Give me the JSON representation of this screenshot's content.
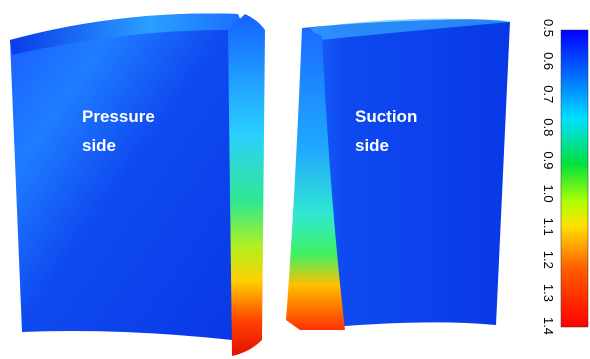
{
  "pressure_label": [
    "Pressure",
    "side"
  ],
  "suction_label": [
    "Suction",
    "side"
  ],
  "colorbar": {
    "ticks": [
      "0.5",
      "0.6",
      "0.7",
      "0.8",
      "0.9",
      "1.0",
      "1.1",
      "1.2",
      "1.3",
      "1.4"
    ]
  }
}
